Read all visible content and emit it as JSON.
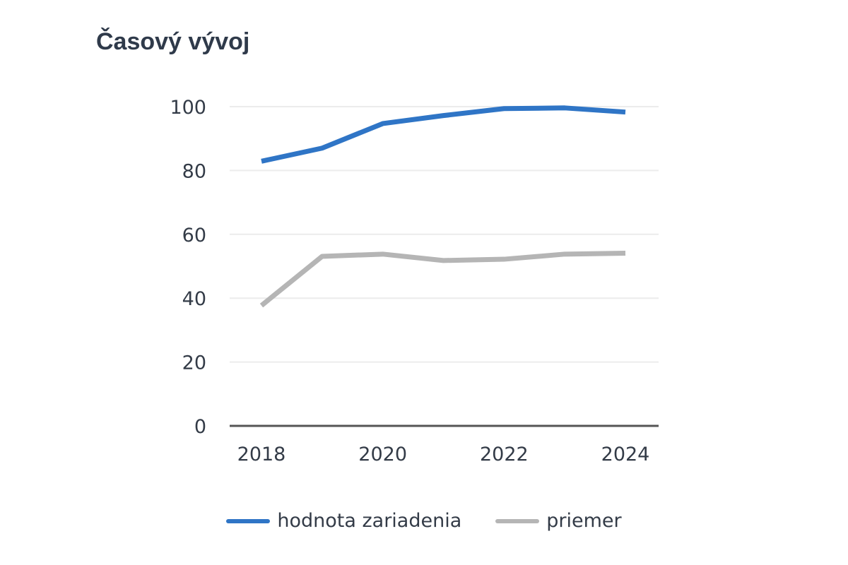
{
  "chart_data": {
    "type": "line",
    "title": "Časový vývoj",
    "xlabel": "",
    "ylabel": "",
    "x": [
      2018,
      2019,
      2020,
      2021,
      2022,
      2023,
      2024
    ],
    "xticks": [
      "2018",
      "2020",
      "2022",
      "2024"
    ],
    "yticks": [
      "0",
      "20",
      "40",
      "60",
      "80",
      "100"
    ],
    "xlim": [
      2018,
      2024
    ],
    "ylim": [
      0,
      100
    ],
    "grid": true,
    "legend_position": "bottom",
    "series": [
      {
        "name": "hodnota zariadenia",
        "color": "#2f75c6",
        "values": [
          82.9,
          87.0,
          94.7,
          97.2,
          99.4,
          99.6,
          98.3
        ]
      },
      {
        "name": "priemer",
        "color": "#b5b5b5",
        "values": [
          37.7,
          53.1,
          53.8,
          51.8,
          52.2,
          53.8,
          54.1
        ]
      }
    ]
  }
}
